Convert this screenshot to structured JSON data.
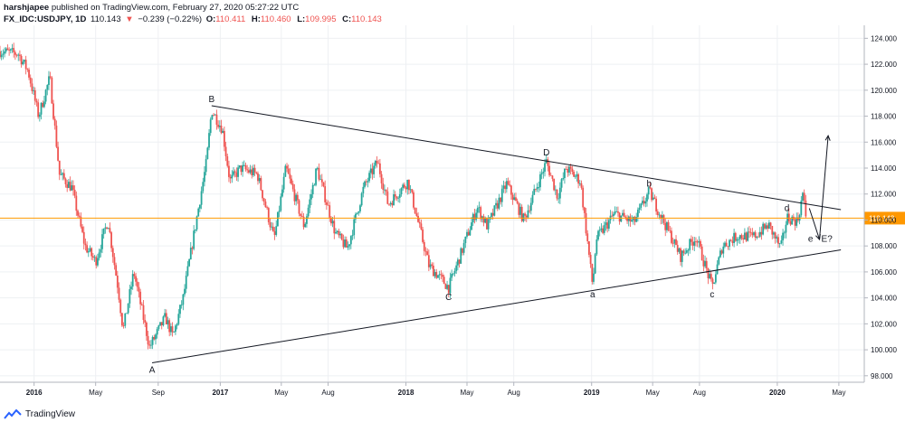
{
  "header": {
    "publisher": "harshjapee",
    "published_text": "published on TradingView.com, February 27, 2020 05:27:22 UTC",
    "symbol": "FX_IDC:USDJPY, 1D",
    "last": "110.143",
    "change": "−0.239 (−0.22%)",
    "o_label": "O:",
    "o_value": "110.411",
    "h_label": "H:",
    "h_value": "110.460",
    "l_label": "L:",
    "l_value": "109.995",
    "c_label": "C:",
    "c_value": "110.143"
  },
  "footer": {
    "brand": "TradingView",
    "logo_icon": "tradingview-logo-icon"
  },
  "colors": {
    "up": "#26a69a",
    "down": "#ef5350",
    "last_price": "#ff9800",
    "line": "#131722",
    "grid": "#eef0f3"
  },
  "chart_data": {
    "type": "candlestick",
    "symbol": "FX_IDC:USDJPY",
    "interval": "1D",
    "ylim": [
      97.5,
      125
    ],
    "y_ticks": [
      "124.000",
      "122.000",
      "120.000",
      "118.000",
      "116.000",
      "114.000",
      "112.000",
      "110.000",
      "108.000",
      "106.000",
      "104.000",
      "102.000",
      "100.000",
      "98.000"
    ],
    "y_tick_values": [
      124,
      122,
      120,
      118,
      116,
      114,
      112,
      110,
      108,
      106,
      104,
      102,
      100,
      98
    ],
    "x_ticks": [
      "2016",
      "May",
      "Sep",
      "2017",
      "May",
      "Aug",
      "2018",
      "May",
      "Aug",
      "2019",
      "May",
      "Aug",
      "2020",
      "May"
    ],
    "x_tick_dates": [
      "2016-01-01",
      "2016-05-01",
      "2016-09-01",
      "2017-01-01",
      "2017-05-01",
      "2017-08-01",
      "2018-01-01",
      "2018-05-01",
      "2018-08-01",
      "2019-01-01",
      "2019-05-01",
      "2019-08-01",
      "2020-01-01",
      "2020-05-01"
    ],
    "x_range": [
      "2015-10-26",
      "2020-06-20"
    ],
    "last_price": {
      "value": 110.143,
      "label": "110.143"
    },
    "price_path": [
      [
        "2015-10-26",
        123.0
      ],
      [
        "2015-12-01",
        122.8
      ],
      [
        "2015-12-20",
        121.5
      ],
      [
        "2016-01-10",
        118.0
      ],
      [
        "2016-02-01",
        121.0
      ],
      [
        "2016-02-20",
        113.5
      ],
      [
        "2016-03-15",
        112.5
      ],
      [
        "2016-04-10",
        108.0
      ],
      [
        "2016-05-01",
        106.8
      ],
      [
        "2016-05-25",
        110.0
      ],
      [
        "2016-06-15",
        104.5
      ],
      [
        "2016-06-24",
        101.5
      ],
      [
        "2016-07-15",
        106.0
      ],
      [
        "2016-08-15",
        100.2
      ],
      [
        "2016-09-15",
        102.5
      ],
      [
        "2016-09-30",
        101.0
      ],
      [
        "2016-10-20",
        104.0
      ],
      [
        "2016-11-15",
        110.0
      ],
      [
        "2016-12-05",
        114.5
      ],
      [
        "2016-12-15",
        118.5
      ],
      [
        "2017-01-05",
        117.0
      ],
      [
        "2017-01-20",
        113.0
      ],
      [
        "2017-02-10",
        114.0
      ],
      [
        "2017-03-15",
        113.5
      ],
      [
        "2017-04-17",
        108.5
      ],
      [
        "2017-05-10",
        114.0
      ],
      [
        "2017-06-15",
        109.5
      ],
      [
        "2017-07-10",
        114.0
      ],
      [
        "2017-08-15",
        109.0
      ],
      [
        "2017-09-08",
        107.8
      ],
      [
        "2017-10-10",
        112.5
      ],
      [
        "2017-11-06",
        114.5
      ],
      [
        "2017-11-27",
        111.2
      ],
      [
        "2018-01-05",
        113.0
      ],
      [
        "2018-02-15",
        106.5
      ],
      [
        "2018-03-26",
        104.8
      ],
      [
        "2018-04-20",
        107.5
      ],
      [
        "2018-05-21",
        111.0
      ],
      [
        "2018-06-10",
        109.5
      ],
      [
        "2018-07-18",
        112.8
      ],
      [
        "2018-08-21",
        110.0
      ],
      [
        "2018-10-04",
        114.5
      ],
      [
        "2018-10-26",
        111.8
      ],
      [
        "2018-11-12",
        114.0
      ],
      [
        "2018-12-10",
        113.0
      ],
      [
        "2019-01-03",
        104.9
      ],
      [
        "2019-01-10",
        108.5
      ],
      [
        "2019-02-15",
        110.5
      ],
      [
        "2019-03-25",
        109.8
      ],
      [
        "2019-04-24",
        112.2
      ],
      [
        "2019-05-30",
        109.3
      ],
      [
        "2019-06-25",
        107.2
      ],
      [
        "2019-07-25",
        108.7
      ],
      [
        "2019-08-26",
        104.8
      ],
      [
        "2019-09-15",
        108.0
      ],
      [
        "2019-10-15",
        108.8
      ],
      [
        "2019-11-15",
        108.7
      ],
      [
        "2019-12-15",
        109.6
      ],
      [
        "2020-01-08",
        107.8
      ],
      [
        "2020-01-20",
        110.2
      ],
      [
        "2020-02-10",
        109.9
      ],
      [
        "2020-02-20",
        112.0
      ],
      [
        "2020-02-27",
        110.1
      ]
    ],
    "annotations": {
      "points": [
        {
          "label": "A",
          "date": "2016-08-20",
          "price": 99.0,
          "place": "below"
        },
        {
          "label": "B",
          "date": "2016-12-15",
          "price": 118.8,
          "place": "above"
        },
        {
          "label": "C",
          "date": "2018-03-26",
          "price": 104.6,
          "place": "below"
        },
        {
          "label": "D",
          "date": "2018-10-04",
          "price": 114.7,
          "place": "above"
        },
        {
          "label": "a",
          "date": "2019-01-03",
          "price": 104.8,
          "place": "below"
        },
        {
          "label": "b",
          "date": "2019-04-24",
          "price": 112.3,
          "place": "above"
        },
        {
          "label": "c",
          "date": "2019-08-26",
          "price": 104.8,
          "place": "below"
        },
        {
          "label": "d",
          "date": "2020-01-20",
          "price": 110.4,
          "place": "above"
        },
        {
          "label": "e",
          "date": "2020-02-27",
          "price": 108.6,
          "place": "right"
        },
        {
          "label": "E?",
          "date": "2020-03-24",
          "price": 108.6,
          "place": "right"
        }
      ],
      "trendlines": [
        {
          "from": [
            "2016-08-20",
            99.0
          ],
          "to": [
            "2020-05-05",
            107.7
          ]
        },
        {
          "from": [
            "2016-12-15",
            118.8
          ],
          "to": [
            "2020-05-05",
            110.8
          ]
        }
      ],
      "projection": [
        [
          "2020-03-04",
          110.9
        ],
        [
          "2020-03-24",
          108.5
        ],
        [
          "2020-04-10",
          116.5
        ]
      ]
    }
  }
}
